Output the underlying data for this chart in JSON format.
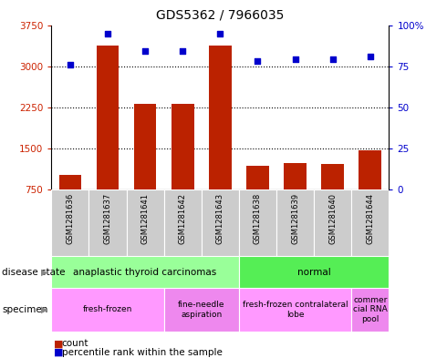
{
  "title": "GDS5362 / 7966035",
  "samples": [
    "GSM1281636",
    "GSM1281637",
    "GSM1281641",
    "GSM1281642",
    "GSM1281643",
    "GSM1281638",
    "GSM1281639",
    "GSM1281640",
    "GSM1281644"
  ],
  "counts": [
    1020,
    3380,
    2310,
    2310,
    3380,
    1180,
    1240,
    1220,
    1470
  ],
  "percentiles": [
    76,
    95,
    84,
    84,
    95,
    78,
    79,
    79,
    81
  ],
  "ylim_left": [
    750,
    3750
  ],
  "ylim_right": [
    0,
    100
  ],
  "yticks_left": [
    750,
    1500,
    2250,
    3000,
    3750
  ],
  "yticks_right": [
    0,
    25,
    50,
    75,
    100
  ],
  "bar_color": "#bb2200",
  "dot_color": "#0000cc",
  "disease_state_groups": [
    {
      "label": "anaplastic thyroid carcinomas",
      "start": 0,
      "end": 5,
      "color": "#99ff99"
    },
    {
      "label": "normal",
      "start": 5,
      "end": 9,
      "color": "#55ee55"
    }
  ],
  "specimen_groups": [
    {
      "label": "fresh-frozen",
      "start": 0,
      "end": 3,
      "color": "#ff99ff"
    },
    {
      "label": "fine-needle\naspiration",
      "start": 3,
      "end": 5,
      "color": "#ee88ee"
    },
    {
      "label": "fresh-frozen contralateral\nlobe",
      "start": 5,
      "end": 8,
      "color": "#ff99ff"
    },
    {
      "label": "commer\ncial RNA\npool",
      "start": 8,
      "end": 9,
      "color": "#ee88ee"
    }
  ],
  "legend_items": [
    "count",
    "percentile rank within the sample"
  ],
  "bg_color": "#ffffff",
  "tick_color_left": "#cc2200",
  "tick_color_right": "#0000cc",
  "sample_bg_color": "#cccccc",
  "border_color": "#888888"
}
